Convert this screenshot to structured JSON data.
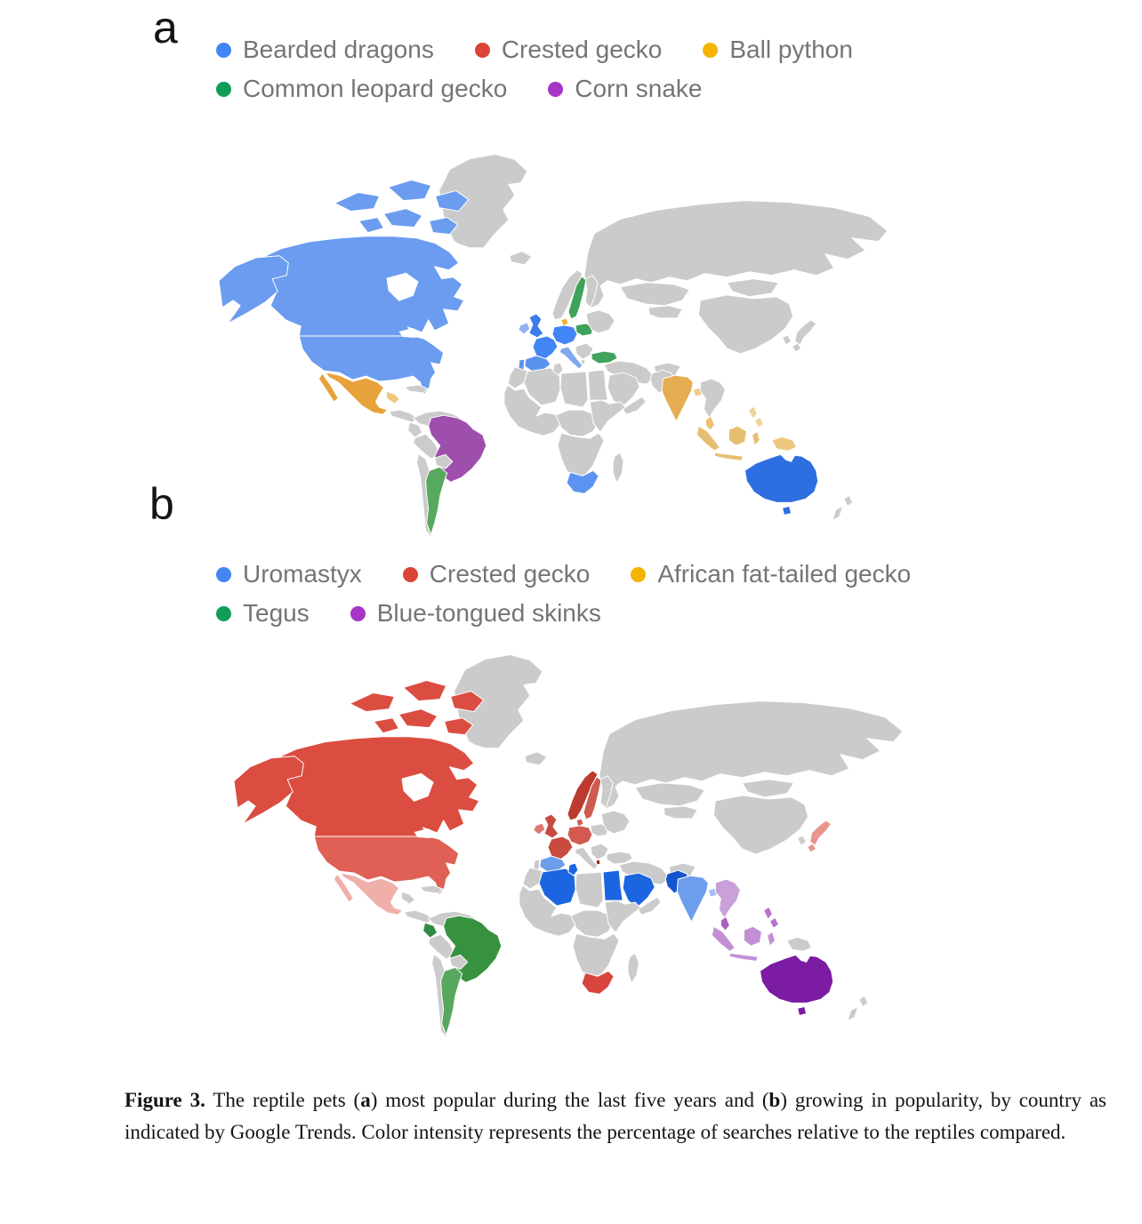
{
  "palette": {
    "land": "#cbcbcb",
    "border": "#ffffff",
    "ocean": "#ffffff",
    "legend_text": "#757575"
  },
  "panel_a": {
    "label": "a",
    "legend": {
      "rows": [
        [
          {
            "label": "Bearded dragons",
            "color": "#4285F4"
          },
          {
            "label": "Crested gecko",
            "color": "#DB4437"
          },
          {
            "label": "Ball python",
            "color": "#F4B400"
          }
        ],
        [
          {
            "label": "Common leopard gecko",
            "color": "#0F9D58"
          },
          {
            "label": "Corn snake",
            "color": "#A635C8"
          }
        ]
      ]
    },
    "countries_by_species": {
      "Bearded dragons": [
        "United States",
        "Canada",
        "United Kingdom",
        "Ireland",
        "France",
        "Germany",
        "Spain",
        "Portugal",
        "Italy",
        "South Africa",
        "Australia"
      ],
      "Crested gecko": [],
      "Ball python": [
        "Mexico",
        "Guatemala",
        "Denmark",
        "India",
        "Bangladesh",
        "Malaysia",
        "Indonesia",
        "Philippines",
        "Papua New Guinea"
      ],
      "Common leopard gecko": [
        "Sweden",
        "Poland",
        "Turkey",
        "Argentina"
      ],
      "Corn snake": [
        "Brazil"
      ]
    },
    "regions": {
      "canada": "#6B9CEF",
      "alaska": "#6B9CEF",
      "usa": "#6B9CEF",
      "mexico": "#E8A23B",
      "guatemala": "#F0C878",
      "brazil": "#9E4FAE",
      "argentina": "#57A95E",
      "uk": "#3C7BEA",
      "ireland": "#8FB0F2",
      "france": "#4285F4",
      "germany": "#4285F4",
      "denmark": "#F0B429",
      "italy": "#7FA8EF",
      "spain": "#5B92EE",
      "portugal": "#5B92EE",
      "sweden": "#3FA25B",
      "poland": "#3FA25B",
      "turkey": "#42A35E",
      "south-africa": "#5C93F0",
      "india": "#E6AC52",
      "bangladesh": "#F0CC85",
      "malaysia": "#EBC070",
      "indonesia": "#E6BE71",
      "philippines": "#F0D396",
      "new-guinea": "#EDC77E",
      "australia": "#2D6EE1",
      "tasmania": "#2D6EE1"
    }
  },
  "panel_b": {
    "label": "b",
    "legend": {
      "rows": [
        [
          {
            "label": "Uromastyx",
            "color": "#4285F4"
          },
          {
            "label": "Crested gecko",
            "color": "#DB4437"
          },
          {
            "label": "African fat-tailed gecko",
            "color": "#F4B400"
          }
        ],
        [
          {
            "label": "Tegus",
            "color": "#0F9D58"
          },
          {
            "label": "Blue-tongued skinks",
            "color": "#A635C8"
          }
        ]
      ]
    },
    "countries_by_species": {
      "Uromastyx": [
        "Algeria",
        "Tunisia",
        "Egypt",
        "Saudi Arabia",
        "Pakistan",
        "India",
        "Bangladesh",
        "Spain"
      ],
      "Crested gecko": [
        "Canada",
        "United States",
        "Mexico",
        "Norway",
        "Sweden",
        "Denmark",
        "United Kingdom",
        "Ireland",
        "France",
        "Germany",
        "Albania",
        "Japan",
        "South Africa"
      ],
      "African fat-tailed gecko": [],
      "Tegus": [
        "Ecuador",
        "Brazil",
        "Argentina"
      ],
      "Blue-tongued skinks": [
        "Australia",
        "Indonesia",
        "Malaysia",
        "Philippines",
        "Thailand",
        "Vietnam"
      ]
    },
    "regions": {
      "canada": "#DC4D41",
      "alaska": "#DC4D41",
      "usa": "#DF6055",
      "mexico": "#EFB0A9",
      "ecuador": "#2F8C42",
      "brazil": "#37923F",
      "argentina": "#58A75F",
      "norway": "#BC3A2E",
      "sweden": "#CE5A50",
      "denmark": "#CE5A50",
      "uk": "#C74A40",
      "ireland": "#DD7A70",
      "france": "#C94A3E",
      "germany": "#D25A50",
      "albania": "#9C2318",
      "spain": "#6D9EEB",
      "algeria": "#1B66E0",
      "tunisia": "#1B66E0",
      "egypt": "#1B66E0",
      "saudi": "#1B66E0",
      "pakistan": "#1455CE",
      "india": "#6D9EEB",
      "bangladesh": "#A5C0F3",
      "japan": "#E8968D",
      "indochina": "#C9A0D8",
      "malaysia": "#A95FC0",
      "indonesia": "#C48FD6",
      "philippines": "#B673CC",
      "australia": "#7B1CA2",
      "tasmania": "#7B1CA2",
      "south-africa": "#D8453C"
    }
  },
  "caption": {
    "segments": [
      {
        "t": "Figure 3.",
        "b": true
      },
      {
        "t": " The reptile pets (",
        "b": false
      },
      {
        "t": "a",
        "b": true
      },
      {
        "t": ") most popular during the last five years and (",
        "b": false
      },
      {
        "t": "b",
        "b": true
      },
      {
        "t": ") growing in popularity, by country as indicated by Google Trends. Color intensity represents the percentage of searches relative to the reptiles compared.",
        "b": false
      }
    ]
  }
}
